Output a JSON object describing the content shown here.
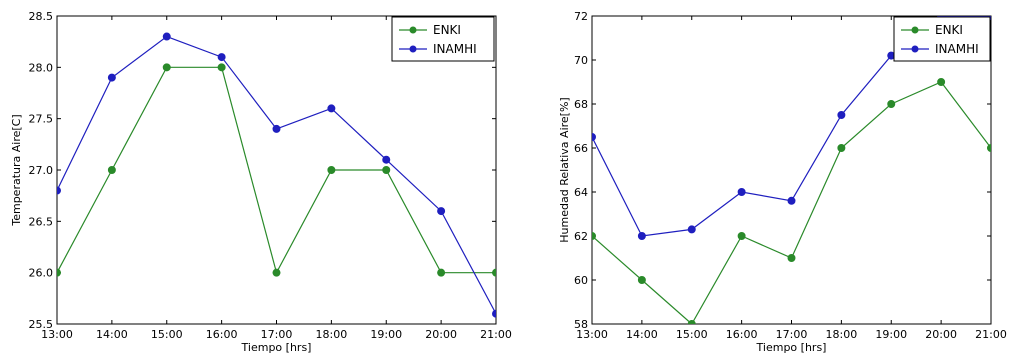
{
  "chart_data": [
    {
      "type": "line",
      "categories": [
        "13:00",
        "14:00",
        "15:00",
        "16:00",
        "17:00",
        "18:00",
        "19:00",
        "20:00",
        "21:00"
      ],
      "xlabel": "Tiempo [hrs]",
      "ylabel": "Temperatura Aire[C]",
      "ylim": [
        25.5,
        28.5
      ],
      "yticks": [
        "25.5",
        "26.0",
        "26.5",
        "27.0",
        "27.5",
        "28.0",
        "28.5"
      ],
      "grid": false,
      "legend_position": "top-right",
      "series": [
        {
          "name": "ENKI",
          "color": "#2a8a2a",
          "values": [
            26.0,
            27.0,
            28.0,
            28.0,
            26.0,
            27.0,
            27.0,
            26.0,
            26.0
          ]
        },
        {
          "name": "INAMHI",
          "color": "#1f1fbf",
          "values": [
            26.8,
            27.9,
            28.3,
            28.1,
            27.4,
            27.6,
            27.1,
            26.6,
            25.6
          ]
        }
      ]
    },
    {
      "type": "line",
      "categories": [
        "13:00",
        "14:00",
        "15:00",
        "16:00",
        "17:00",
        "18:00",
        "19:00",
        "20:00",
        "21:00"
      ],
      "xlabel": "Tiempo [hrs]",
      "ylabel": "Humedad Relativa Aire[%]",
      "ylim": [
        58,
        72
      ],
      "yticks": [
        "58",
        "60",
        "62",
        "64",
        "66",
        "68",
        "70",
        "72"
      ],
      "grid": false,
      "legend_position": "top-right",
      "series": [
        {
          "name": "ENKI",
          "color": "#2a8a2a",
          "values": [
            62.0,
            60.0,
            58.0,
            62.0,
            61.0,
            66.0,
            68.0,
            69.0,
            66.0
          ]
        },
        {
          "name": "INAMHI",
          "color": "#1f1fbf",
          "values": [
            66.5,
            62.0,
            62.3,
            64.0,
            63.6,
            67.5,
            70.2,
            72.0,
            72.0
          ]
        }
      ]
    }
  ]
}
